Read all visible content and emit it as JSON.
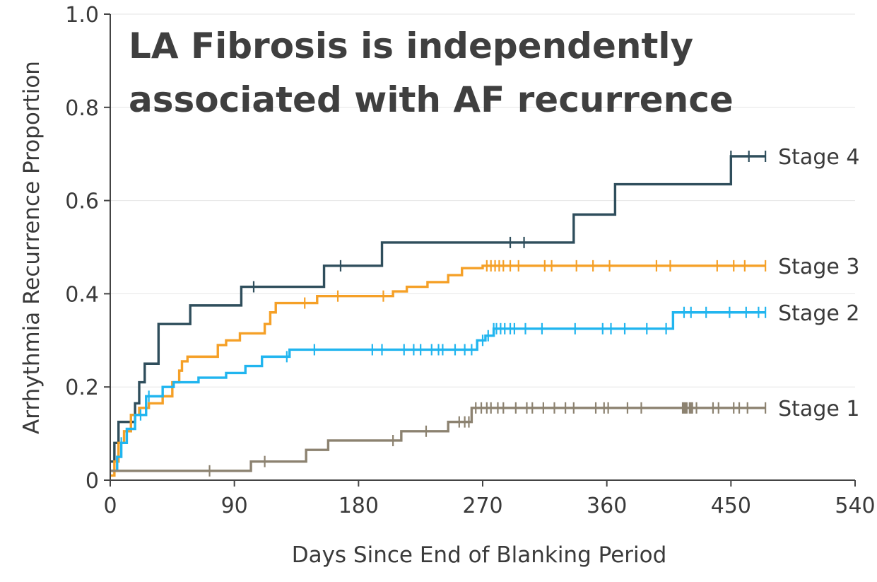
{
  "chart_data": {
    "type": "line",
    "title": [
      "LA Fibrosis is independently",
      "associated with AF recurrence"
    ],
    "xlabel": "Days Since End of Blanking Period",
    "ylabel": "Arrhythmia Recurrence Proportion",
    "xlim": [
      0,
      540
    ],
    "ylim": [
      0,
      1.0
    ],
    "x_ticks": [
      0,
      90,
      180,
      270,
      360,
      450,
      540
    ],
    "x_tick_labels": [
      "0",
      "90",
      "180",
      "270",
      "360",
      "450",
      "540"
    ],
    "y_ticks": [
      0,
      0.2,
      0.4,
      0.6,
      0.8,
      1.0
    ],
    "y_tick_labels": [
      "0",
      "0.2",
      "0.4",
      "0.6",
      "0.8",
      "1.0"
    ],
    "grid": true,
    "step": true,
    "series": [
      {
        "name": "Stage 4",
        "color": "#2f4e5c",
        "points": [
          [
            0,
            0.04
          ],
          [
            3,
            0.08
          ],
          [
            6,
            0.125
          ],
          [
            15,
            0.125
          ],
          [
            18,
            0.165
          ],
          [
            21,
            0.21
          ],
          [
            25,
            0.25
          ],
          [
            34,
            0.25
          ],
          [
            35,
            0.335
          ],
          [
            58,
            0.335
          ],
          [
            58,
            0.375
          ],
          [
            95,
            0.375
          ],
          [
            95,
            0.415
          ],
          [
            155,
            0.415
          ],
          [
            155,
            0.46
          ],
          [
            197,
            0.46
          ],
          [
            197,
            0.51
          ],
          [
            336,
            0.51
          ],
          [
            336,
            0.57
          ],
          [
            366,
            0.57
          ],
          [
            366,
            0.635
          ],
          [
            450,
            0.635
          ],
          [
            450,
            0.695
          ],
          [
            475,
            0.695
          ]
        ],
        "censor": [
          104,
          167,
          290,
          300,
          450,
          463,
          475
        ]
      },
      {
        "name": "Stage 3",
        "color": "#f5a027",
        "points": [
          [
            0,
            0.01
          ],
          [
            3,
            0.04
          ],
          [
            6,
            0.08
          ],
          [
            10,
            0.105
          ],
          [
            15,
            0.14
          ],
          [
            21,
            0.155
          ],
          [
            28,
            0.165
          ],
          [
            38,
            0.18
          ],
          [
            45,
            0.21
          ],
          [
            50,
            0.235
          ],
          [
            52,
            0.255
          ],
          [
            56,
            0.265
          ],
          [
            73,
            0.265
          ],
          [
            78,
            0.29
          ],
          [
            84,
            0.3
          ],
          [
            90,
            0.3
          ],
          [
            94,
            0.315
          ],
          [
            110,
            0.315
          ],
          [
            112,
            0.335
          ],
          [
            116,
            0.36
          ],
          [
            120,
            0.38
          ],
          [
            150,
            0.38
          ],
          [
            150,
            0.395
          ],
          [
            205,
            0.395
          ],
          [
            205,
            0.405
          ],
          [
            215,
            0.415
          ],
          [
            230,
            0.425
          ],
          [
            245,
            0.44
          ],
          [
            255,
            0.455
          ],
          [
            270,
            0.46
          ],
          [
            475,
            0.46
          ]
        ],
        "censor": [
          141,
          165,
          198,
          273,
          276,
          279,
          282,
          285,
          290,
          296,
          315,
          320,
          338,
          350,
          362,
          396,
          406,
          440,
          452,
          460,
          475
        ]
      },
      {
        "name": "Stage 2",
        "color": "#21b5ef",
        "points": [
          [
            0,
            0.02
          ],
          [
            5,
            0.05
          ],
          [
            8,
            0.08
          ],
          [
            12,
            0.11
          ],
          [
            18,
            0.14
          ],
          [
            26,
            0.18
          ],
          [
            38,
            0.2
          ],
          [
            46,
            0.21
          ],
          [
            64,
            0.22
          ],
          [
            84,
            0.23
          ],
          [
            98,
            0.245
          ],
          [
            110,
            0.265
          ],
          [
            130,
            0.28
          ],
          [
            266,
            0.28
          ],
          [
            266,
            0.3
          ],
          [
            272,
            0.31
          ],
          [
            278,
            0.325
          ],
          [
            408,
            0.325
          ],
          [
            408,
            0.36
          ],
          [
            475,
            0.36
          ]
        ],
        "censor": [
          8,
          22,
          28,
          128,
          148,
          190,
          197,
          213,
          220,
          225,
          233,
          238,
          241,
          250,
          257,
          262,
          270,
          274,
          278,
          280,
          283,
          286,
          290,
          293,
          301,
          313,
          337,
          357,
          363,
          373,
          389,
          403,
          416,
          421,
          432,
          449,
          461,
          470,
          475
        ]
      },
      {
        "name": "Stage 1",
        "color": "#8c8270",
        "points": [
          [
            0,
            0.02
          ],
          [
            102,
            0.02
          ],
          [
            102,
            0.04
          ],
          [
            142,
            0.04
          ],
          [
            142,
            0.065
          ],
          [
            158,
            0.065
          ],
          [
            158,
            0.085
          ],
          [
            211,
            0.085
          ],
          [
            211,
            0.105
          ],
          [
            245,
            0.105
          ],
          [
            245,
            0.125
          ],
          [
            262,
            0.125
          ],
          [
            262,
            0.155
          ],
          [
            475,
            0.155
          ]
        ],
        "censor": [
          72,
          112,
          205,
          229,
          253,
          257,
          260,
          265,
          269,
          273,
          276,
          281,
          285,
          294,
          302,
          306,
          314,
          322,
          330,
          336,
          352,
          358,
          361,
          375,
          385,
          415,
          416,
          417,
          418,
          420,
          421,
          422,
          425,
          437,
          441,
          452,
          456,
          462,
          475
        ]
      }
    ]
  }
}
